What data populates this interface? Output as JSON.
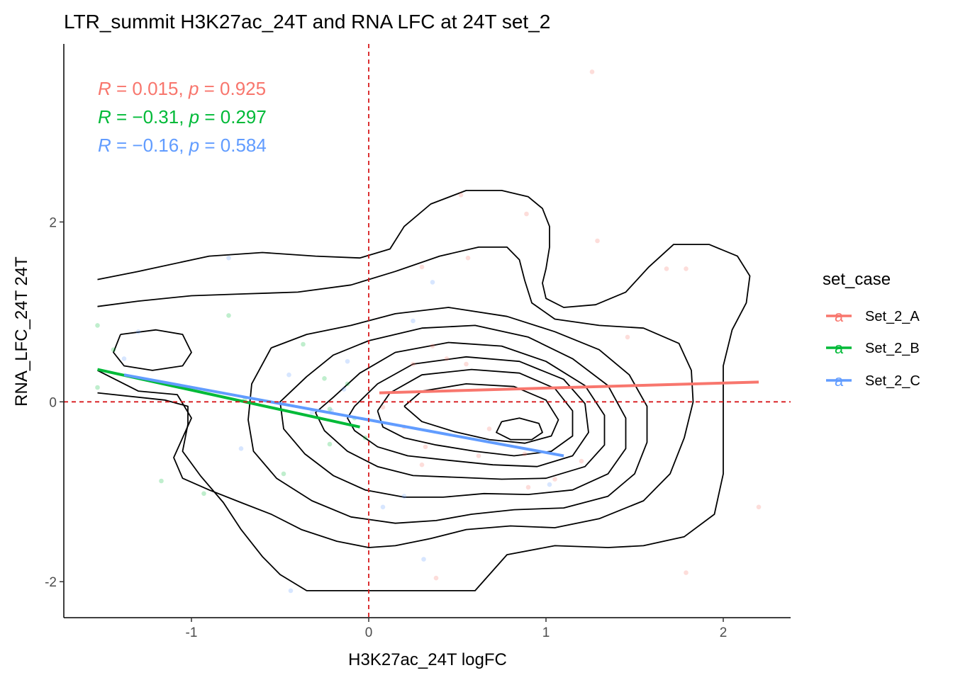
{
  "chart_data": {
    "type": "scatter",
    "title": "LTR_summit H3K27ac_24T and RNA LFC at 24T set_2",
    "xlabel": "H3K27ac_24T logFC",
    "ylabel": "RNA_LFC_24T 24T",
    "xlim": [
      -1.72,
      2.38
    ],
    "ylim": [
      -2.4,
      3.98
    ],
    "x_ticks": [
      -1,
      0,
      1,
      2
    ],
    "x_tick_labels": [
      "-1",
      "0",
      "1",
      "2"
    ],
    "y_ticks": [
      -2,
      0,
      2
    ],
    "y_tick_labels": [
      "-2",
      "0",
      "2"
    ],
    "reference_lines": {
      "x": 0,
      "y": 0,
      "color": "#d7191c"
    },
    "legend": {
      "title": "set_case",
      "key_glyph": "a",
      "entries": [
        "Set_2_A",
        "Set_2_B",
        "Set_2_C"
      ],
      "position": "right"
    },
    "stats": [
      {
        "series": "Set_2_A",
        "r_symbol": "R",
        "r_text": " = 0.015, ",
        "p_symbol": "p",
        "p_text": " = 0.925"
      },
      {
        "series": "Set_2_B",
        "r_symbol": "R",
        "r_text": " = −0.31, ",
        "p_symbol": "p",
        "p_text": " = 0.297"
      },
      {
        "series": "Set_2_C",
        "r_symbol": "R",
        "r_text": " = −0.16, ",
        "p_symbol": "p",
        "p_text": " = 0.584"
      }
    ],
    "series": [
      {
        "name": "Set_2_A",
        "color": "#f8766d",
        "fit": {
          "x": [
            0.06,
            2.2
          ],
          "y": [
            0.1,
            0.22
          ]
        },
        "points": [
          {
            "x": 1.26,
            "y": 3.67
          },
          {
            "x": 0.52,
            "y": 2.3
          },
          {
            "x": 0.89,
            "y": 2.09
          },
          {
            "x": 1.29,
            "y": 1.79
          },
          {
            "x": 0.56,
            "y": 1.6
          },
          {
            "x": 0.3,
            "y": 1.5
          },
          {
            "x": 1.68,
            "y": 1.48
          },
          {
            "x": 1.79,
            "y": 1.48
          },
          {
            "x": 1.46,
            "y": 0.72
          },
          {
            "x": 0.36,
            "y": 0.62
          },
          {
            "x": 0.44,
            "y": 0.48
          },
          {
            "x": 0.25,
            "y": 0.42
          },
          {
            "x": 0.55,
            "y": 0.42
          },
          {
            "x": 0.08,
            "y": -0.06
          },
          {
            "x": 0.2,
            "y": -0.28
          },
          {
            "x": 0.68,
            "y": -0.3
          },
          {
            "x": 0.32,
            "y": -0.5
          },
          {
            "x": 0.62,
            "y": -0.6
          },
          {
            "x": 0.3,
            "y": -0.7
          },
          {
            "x": 0.88,
            "y": -0.58
          },
          {
            "x": 1.2,
            "y": -0.66
          },
          {
            "x": 0.9,
            "y": -0.95
          },
          {
            "x": 1.05,
            "y": -0.86
          },
          {
            "x": 2.2,
            "y": -1.17
          },
          {
            "x": 0.38,
            "y": -1.96
          },
          {
            "x": 1.79,
            "y": -1.9
          }
        ]
      },
      {
        "name": "Set_2_B",
        "color": "#00ba38",
        "fit": {
          "x": [
            -1.53,
            -0.05
          ],
          "y": [
            0.36,
            -0.28
          ]
        },
        "points": [
          {
            "x": -1.53,
            "y": 0.85
          },
          {
            "x": -1.44,
            "y": 0.58
          },
          {
            "x": -1.53,
            "y": 0.16
          },
          {
            "x": -0.79,
            "y": 0.96
          },
          {
            "x": -0.37,
            "y": 0.64
          },
          {
            "x": -0.25,
            "y": 0.26
          },
          {
            "x": -0.22,
            "y": -0.08
          },
          {
            "x": -0.08,
            "y": -0.18
          },
          {
            "x": -0.02,
            "y": -0.4
          },
          {
            "x": -0.22,
            "y": -0.47
          },
          {
            "x": -0.48,
            "y": -0.8
          },
          {
            "x": -1.17,
            "y": -0.88
          },
          {
            "x": -0.93,
            "y": -1.02
          },
          {
            "x": -0.12,
            "y": 0.2
          },
          {
            "x": -0.7,
            "y": 0.02
          }
        ]
      },
      {
        "name": "Set_2_C",
        "color": "#619cff",
        "fit": {
          "x": [
            -1.38,
            1.1
          ],
          "y": [
            0.3,
            -0.6
          ]
        },
        "points": [
          {
            "x": -0.79,
            "y": 1.6
          },
          {
            "x": 0.36,
            "y": 1.33
          },
          {
            "x": 0.25,
            "y": 0.9
          },
          {
            "x": -0.12,
            "y": 0.45
          },
          {
            "x": -0.45,
            "y": 0.3
          },
          {
            "x": -0.14,
            "y": 0.14
          },
          {
            "x": -0.21,
            "y": -0.1
          },
          {
            "x": -0.32,
            "y": -0.12
          },
          {
            "x": -0.72,
            "y": -0.52
          },
          {
            "x": 0.08,
            "y": -1.17
          },
          {
            "x": 0.2,
            "y": -1.05
          },
          {
            "x": -0.44,
            "y": -2.1
          },
          {
            "x": 0.31,
            "y": -1.75
          },
          {
            "x": -1.38,
            "y": 0.48
          },
          {
            "x": -1.3,
            "y": 0.78
          },
          {
            "x": 1.02,
            "y": -0.92
          }
        ]
      }
    ],
    "density_contours": {
      "color": "#000000",
      "levels": [
        [
          [
            -1.53,
            1.36
          ],
          [
            -1.3,
            1.45
          ],
          [
            -0.9,
            1.62
          ],
          [
            -0.6,
            1.66
          ],
          [
            -0.3,
            1.62
          ],
          [
            -0.05,
            1.6
          ],
          [
            0.12,
            1.7
          ],
          [
            0.2,
            1.95
          ],
          [
            0.35,
            2.2
          ],
          [
            0.55,
            2.35
          ],
          [
            0.75,
            2.35
          ],
          [
            0.9,
            2.28
          ],
          [
            0.98,
            2.15
          ],
          [
            1.02,
            1.95
          ],
          [
            1.02,
            1.72
          ],
          [
            1.0,
            1.48
          ],
          [
            0.98,
            1.32
          ],
          [
            1.0,
            1.15
          ],
          [
            1.1,
            1.05
          ],
          [
            1.28,
            1.08
          ],
          [
            1.45,
            1.22
          ],
          [
            1.58,
            1.5
          ],
          [
            1.72,
            1.75
          ],
          [
            1.92,
            1.75
          ],
          [
            2.08,
            1.62
          ],
          [
            2.15,
            1.4
          ],
          [
            2.13,
            1.1
          ],
          [
            2.05,
            0.8
          ],
          [
            2.0,
            0.4
          ],
          [
            2.0,
            -0.2
          ],
          [
            2.0,
            -0.8
          ],
          [
            1.95,
            -1.25
          ],
          [
            1.78,
            -1.5
          ],
          [
            1.55,
            -1.6
          ],
          [
            1.35,
            -1.62
          ],
          [
            1.05,
            -1.6
          ],
          [
            0.78,
            -1.7
          ],
          [
            0.6,
            -2.1
          ],
          [
            -0.35,
            -2.1
          ],
          [
            -0.5,
            -1.92
          ],
          [
            -0.6,
            -1.72
          ],
          [
            -0.72,
            -1.42
          ],
          [
            -0.82,
            -1.12
          ],
          [
            -0.95,
            -0.82
          ],
          [
            -1.05,
            -0.55
          ],
          [
            -1.02,
            -0.25
          ],
          [
            -1.02,
            -0.05
          ],
          [
            -1.15,
            0.02
          ],
          [
            -1.53,
            0.1
          ]
        ],
        [
          [
            -1.53,
            1.06
          ],
          [
            -1.3,
            1.12
          ],
          [
            -1.0,
            1.18
          ],
          [
            -0.7,
            1.2
          ],
          [
            -0.4,
            1.22
          ],
          [
            -0.1,
            1.3
          ],
          [
            0.15,
            1.45
          ],
          [
            0.4,
            1.62
          ],
          [
            0.62,
            1.72
          ],
          [
            0.78,
            1.72
          ],
          [
            0.85,
            1.58
          ],
          [
            0.88,
            1.35
          ],
          [
            0.92,
            1.1
          ],
          [
            1.05,
            0.92
          ],
          [
            1.3,
            0.85
          ],
          [
            1.55,
            0.82
          ],
          [
            1.75,
            0.65
          ],
          [
            1.82,
            0.35
          ],
          [
            1.83,
            0.0
          ],
          [
            1.78,
            -0.4
          ],
          [
            1.7,
            -0.8
          ],
          [
            1.55,
            -1.1
          ],
          [
            1.3,
            -1.3
          ],
          [
            1.05,
            -1.4
          ],
          [
            0.8,
            -1.38
          ],
          [
            0.55,
            -1.42
          ],
          [
            0.35,
            -1.52
          ],
          [
            0.15,
            -1.6
          ],
          [
            0.0,
            -1.62
          ],
          [
            -0.18,
            -1.55
          ],
          [
            -0.38,
            -1.42
          ],
          [
            -0.55,
            -1.25
          ],
          [
            -0.72,
            -1.12
          ],
          [
            -0.9,
            -0.98
          ],
          [
            -1.05,
            -0.85
          ],
          [
            -1.1,
            -0.62
          ],
          [
            -1.05,
            -0.4
          ],
          [
            -1.0,
            -0.18
          ],
          [
            -1.08,
            0.08
          ],
          [
            -1.3,
            0.12
          ],
          [
            -1.53,
            0.35
          ]
        ],
        [
          [
            -1.4,
            0.75
          ],
          [
            -1.2,
            0.8
          ],
          [
            -1.05,
            0.75
          ],
          [
            -1.0,
            0.55
          ],
          [
            -1.05,
            0.4
          ],
          [
            -1.22,
            0.35
          ],
          [
            -1.38,
            0.4
          ],
          [
            -1.44,
            0.55
          ],
          [
            -1.4,
            0.75
          ]
        ],
        [
          [
            -0.55,
            0.6
          ],
          [
            -0.35,
            0.75
          ],
          [
            -0.1,
            0.85
          ],
          [
            0.15,
            0.98
          ],
          [
            0.45,
            1.05
          ],
          [
            0.78,
            0.95
          ],
          [
            1.05,
            0.78
          ],
          [
            1.3,
            0.58
          ],
          [
            1.47,
            0.3
          ],
          [
            1.57,
            -0.05
          ],
          [
            1.57,
            -0.45
          ],
          [
            1.5,
            -0.8
          ],
          [
            1.35,
            -1.05
          ],
          [
            1.1,
            -1.18
          ],
          [
            0.82,
            -1.2
          ],
          [
            0.58,
            -1.25
          ],
          [
            0.38,
            -1.32
          ],
          [
            0.15,
            -1.35
          ],
          [
            -0.1,
            -1.28
          ],
          [
            -0.32,
            -1.1
          ],
          [
            -0.52,
            -0.85
          ],
          [
            -0.65,
            -0.55
          ],
          [
            -0.68,
            -0.2
          ],
          [
            -0.66,
            0.2
          ],
          [
            -0.55,
            0.6
          ]
        ],
        [
          [
            -0.35,
            0.28
          ],
          [
            -0.2,
            0.52
          ],
          [
            0.0,
            0.68
          ],
          [
            0.3,
            0.82
          ],
          [
            0.6,
            0.85
          ],
          [
            0.9,
            0.72
          ],
          [
            1.15,
            0.48
          ],
          [
            1.35,
            0.18
          ],
          [
            1.45,
            -0.18
          ],
          [
            1.45,
            -0.52
          ],
          [
            1.35,
            -0.8
          ],
          [
            1.15,
            -0.98
          ],
          [
            0.9,
            -1.03
          ],
          [
            0.65,
            -1.02
          ],
          [
            0.42,
            -1.06
          ],
          [
            0.2,
            -1.06
          ],
          [
            -0.02,
            -0.98
          ],
          [
            -0.2,
            -0.82
          ],
          [
            -0.36,
            -0.58
          ],
          [
            -0.48,
            -0.3
          ],
          [
            -0.5,
            0.0
          ],
          [
            -0.35,
            0.28
          ]
        ],
        [
          [
            -0.2,
            0.05
          ],
          [
            -0.05,
            0.32
          ],
          [
            0.15,
            0.55
          ],
          [
            0.45,
            0.66
          ],
          [
            0.75,
            0.62
          ],
          [
            1.0,
            0.45
          ],
          [
            1.22,
            0.18
          ],
          [
            1.33,
            -0.15
          ],
          [
            1.33,
            -0.48
          ],
          [
            1.22,
            -0.72
          ],
          [
            1.0,
            -0.85
          ],
          [
            0.75,
            -0.86
          ],
          [
            0.5,
            -0.84
          ],
          [
            0.25,
            -0.82
          ],
          [
            0.05,
            -0.72
          ],
          [
            -0.12,
            -0.55
          ],
          [
            -0.25,
            -0.32
          ],
          [
            -0.3,
            -0.12
          ],
          [
            -0.2,
            0.05
          ]
        ],
        [
          [
            -0.08,
            -0.05
          ],
          [
            0.05,
            0.2
          ],
          [
            0.25,
            0.42
          ],
          [
            0.55,
            0.5
          ],
          [
            0.85,
            0.45
          ],
          [
            1.1,
            0.25
          ],
          [
            1.22,
            -0.02
          ],
          [
            1.24,
            -0.34
          ],
          [
            1.15,
            -0.6
          ],
          [
            0.95,
            -0.72
          ],
          [
            0.7,
            -0.7
          ],
          [
            0.45,
            -0.65
          ],
          [
            0.22,
            -0.6
          ],
          [
            0.05,
            -0.5
          ],
          [
            -0.08,
            -0.32
          ],
          [
            -0.12,
            -0.18
          ],
          [
            -0.08,
            -0.05
          ]
        ],
        [
          [
            0.05,
            -0.1
          ],
          [
            0.12,
            0.1
          ],
          [
            0.3,
            0.3
          ],
          [
            0.58,
            0.36
          ],
          [
            0.85,
            0.32
          ],
          [
            1.05,
            0.15
          ],
          [
            1.15,
            -0.1
          ],
          [
            1.15,
            -0.38
          ],
          [
            1.03,
            -0.55
          ],
          [
            0.82,
            -0.6
          ],
          [
            0.6,
            -0.55
          ],
          [
            0.38,
            -0.48
          ],
          [
            0.2,
            -0.4
          ],
          [
            0.08,
            -0.28
          ],
          [
            0.05,
            -0.1
          ]
        ],
        [
          [
            0.2,
            -0.05
          ],
          [
            0.3,
            0.12
          ],
          [
            0.55,
            0.2
          ],
          [
            0.82,
            0.17
          ],
          [
            1.0,
            0.02
          ],
          [
            1.07,
            -0.2
          ],
          [
            1.03,
            -0.38
          ],
          [
            0.88,
            -0.46
          ],
          [
            0.68,
            -0.42
          ],
          [
            0.48,
            -0.33
          ],
          [
            0.3,
            -0.22
          ],
          [
            0.2,
            -0.05
          ]
        ],
        [
          [
            0.75,
            -0.22
          ],
          [
            0.85,
            -0.18
          ],
          [
            0.96,
            -0.24
          ],
          [
            0.98,
            -0.34
          ],
          [
            0.92,
            -0.42
          ],
          [
            0.8,
            -0.42
          ],
          [
            0.72,
            -0.34
          ],
          [
            0.75,
            -0.22
          ]
        ]
      ]
    }
  }
}
